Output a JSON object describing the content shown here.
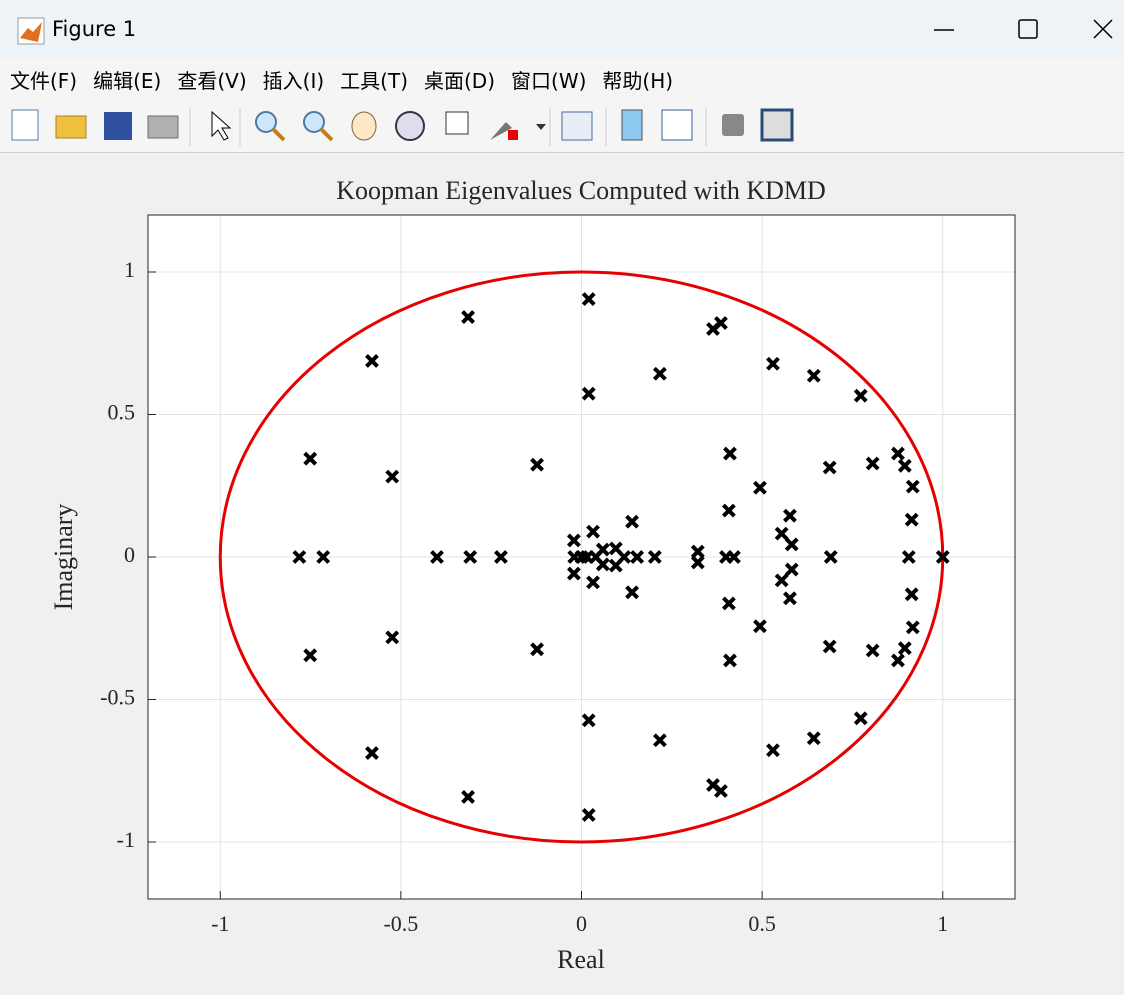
{
  "window": {
    "title": "Figure 1",
    "menu": [
      "文件(F)",
      "编辑(E)",
      "查看(V)",
      "插入(I)",
      "工具(T)",
      "桌面(D)",
      "窗口(W)",
      "帮助(H)"
    ]
  },
  "chart_data": {
    "type": "scatter",
    "title": "Koopman Eigenvalues Computed with KDMD",
    "x_label": "Real",
    "y_label": "Imaginary",
    "xlim": [
      -1.2,
      1.2
    ],
    "ylim": [
      -1.2,
      1.2
    ],
    "xticks": [
      -1,
      -0.5,
      0,
      0.5,
      1
    ],
    "yticks": [
      -1,
      -0.5,
      0,
      0.5,
      1
    ],
    "grid": true,
    "unit_circle": {
      "radius": 1,
      "color": "#e60000"
    },
    "series": [
      {
        "color": "#000000",
        "marker": "x",
        "x": [
          0.02,
          -0.314,
          -0.58,
          0.364,
          0.386,
          0.217,
          0.53,
          0.643,
          0.773,
          0.02,
          -0.751,
          -0.524,
          -0.123,
          0.411,
          0.876,
          0.806,
          0.687,
          0.895,
          0.917,
          0.494,
          0.408,
          0.577,
          0.914,
          0.14,
          0.554,
          0.032,
          -0.021,
          0.582,
          0.095,
          0.059,
          0.322,
          0.02,
          -0.314,
          -0.58,
          0.364,
          0.386,
          0.217,
          0.53,
          0.643,
          0.773,
          0.02,
          -0.751,
          -0.524,
          -0.123,
          0.411,
          0.876,
          0.806,
          0.687,
          0.895,
          0.917,
          0.494,
          0.408,
          0.577,
          0.914,
          0.14,
          0.554,
          0.032,
          -0.021,
          0.582,
          0.095,
          0.059,
          0.322,
          -0.781,
          -0.715,
          -0.4,
          -0.308,
          -0.223,
          -0.02,
          0,
          0.015,
          0.04,
          0.118,
          0.154,
          0.203,
          0.4,
          0.422,
          0.69,
          0.906,
          1.0
        ],
        "values": [
          0.905,
          0.842,
          0.688,
          0.8,
          0.821,
          0.643,
          0.678,
          0.636,
          0.566,
          0.573,
          0.345,
          0.282,
          0.324,
          0.363,
          0.363,
          0.328,
          0.314,
          0.32,
          0.247,
          0.243,
          0.163,
          0.145,
          0.131,
          0.124,
          0.082,
          0.089,
          0.058,
          0.044,
          0.03,
          0.026,
          0.019,
          -0.905,
          -0.842,
          -0.688,
          -0.8,
          -0.821,
          -0.643,
          -0.678,
          -0.636,
          -0.566,
          -0.573,
          -0.345,
          -0.282,
          -0.324,
          -0.363,
          -0.363,
          -0.328,
          -0.314,
          -0.32,
          -0.247,
          -0.243,
          -0.163,
          -0.145,
          -0.131,
          -0.124,
          -0.082,
          -0.089,
          -0.058,
          -0.044,
          -0.03,
          -0.026,
          -0.019,
          0,
          0,
          0,
          0,
          0,
          0,
          0,
          0,
          0,
          0,
          0,
          0,
          0,
          0,
          0,
          0,
          0
        ]
      }
    ]
  }
}
